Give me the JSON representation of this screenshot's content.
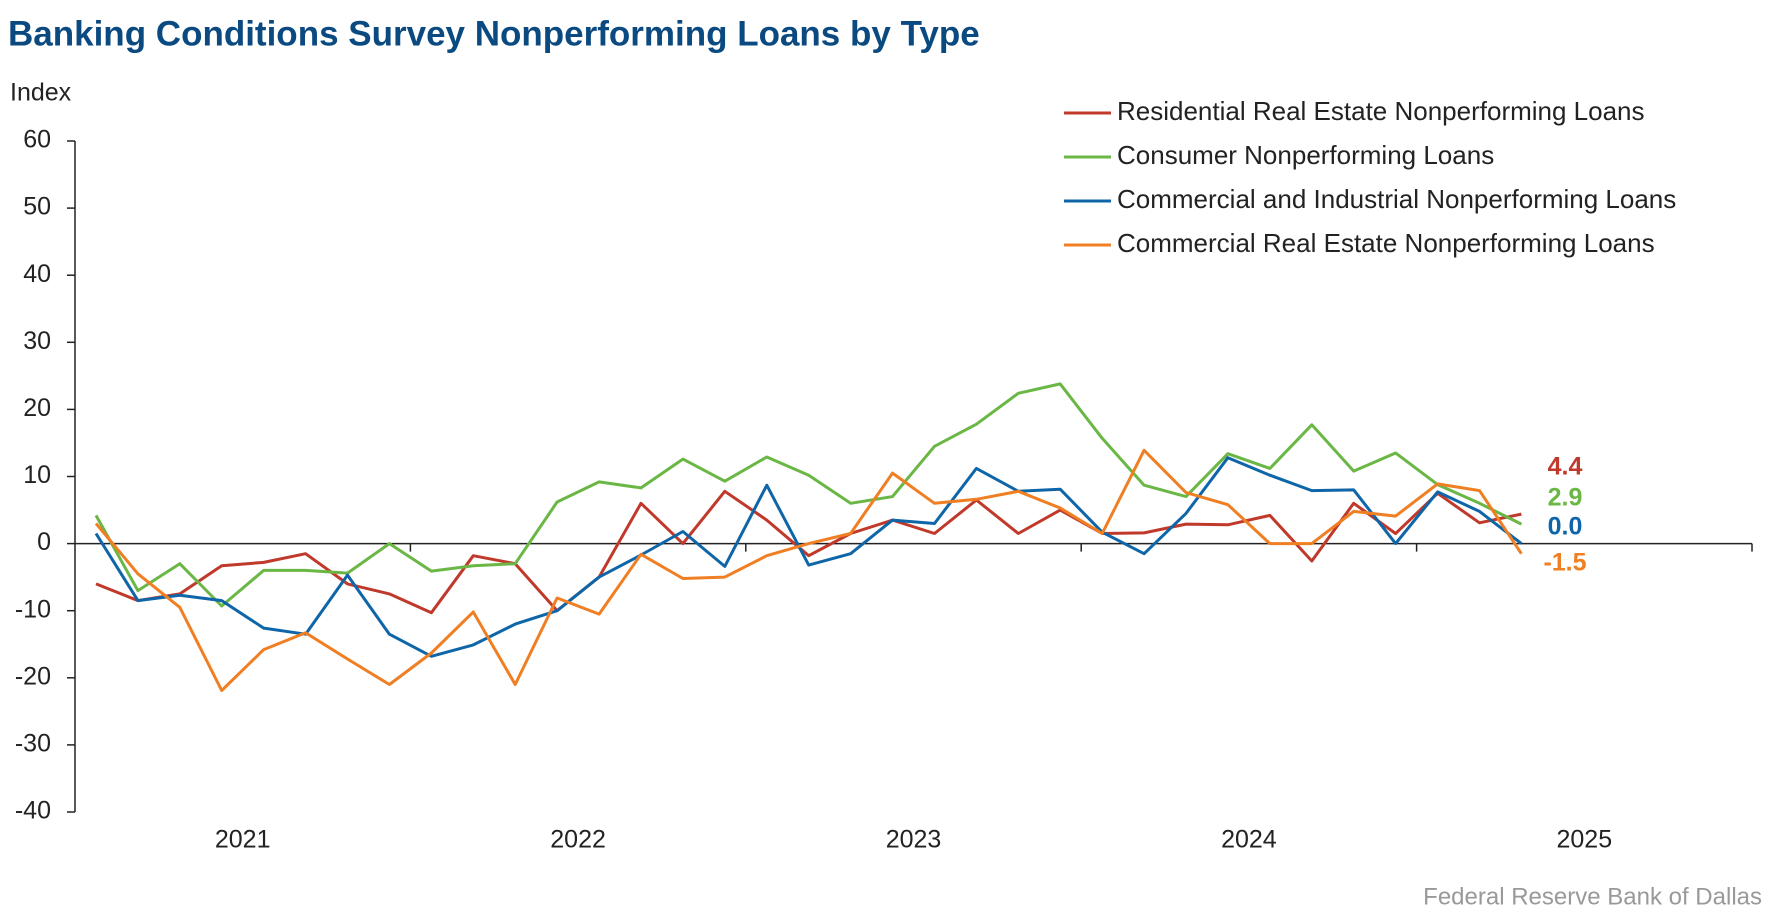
{
  "chart_data": {
    "type": "line",
    "title": "Banking Conditions Survey Nonperforming Loans by Type",
    "y_label": "Index",
    "source": "Federal Reserve Bank of Dallas",
    "x_labels": [
      "2021",
      "2022",
      "2023",
      "2024",
      "2025"
    ],
    "categories": [
      null,
      null,
      null,
      null,
      null,
      null,
      null,
      null,
      null,
      null,
      null,
      null,
      null,
      null,
      null,
      null,
      null,
      null,
      null,
      null,
      null,
      null,
      null,
      null,
      null,
      null,
      null,
      null,
      null,
      null,
      null,
      null,
      null,
      null,
      null
    ],
    "ylim": [
      -40,
      60
    ],
    "yticks": [
      -40,
      -30,
      -20,
      -10,
      0,
      10,
      20,
      30,
      40,
      50,
      60
    ],
    "series": [
      {
        "name": "Residential Real Estate Nonperforming Loans",
        "color": "#c0392b",
        "end_label": "4.4",
        "values": [
          -6,
          -8.5,
          -7.5,
          -3.3,
          -2.8,
          -1.5,
          -6,
          -7.5,
          -10.3,
          -1.8,
          -3,
          -10,
          -5,
          6,
          0,
          7.8,
          3.5,
          -1.8,
          1.5,
          3.5,
          1.5,
          6.5,
          1.5,
          5,
          1.5,
          1.6,
          2.9,
          2.8,
          4.2,
          -2.6,
          6,
          1.5,
          7.5,
          3.1,
          4.4
        ]
      },
      {
        "name": "Consumer Nonperforming Loans",
        "color": "#6ab745",
        "end_label": "2.9",
        "values": [
          4.2,
          -7,
          -3,
          -9.3,
          -4,
          -4,
          -4.4,
          0,
          -4.1,
          -3.3,
          -3,
          6.2,
          9.2,
          8.3,
          12.6,
          9.3,
          12.9,
          10.2,
          6,
          7,
          14.5,
          17.8,
          22.4,
          23.8,
          15.7,
          8.7,
          7,
          13.4,
          11.2,
          17.7,
          10.8,
          13.5,
          8.8,
          6,
          2.9
        ]
      },
      {
        "name": "Commercial and Industrial Nonperforming Loans",
        "color": "#0e66a8",
        "end_label": "0.0",
        "values": [
          1.5,
          -8.5,
          -7.7,
          -8.5,
          -12.6,
          -13.5,
          -4.7,
          -13.5,
          -16.8,
          -15.1,
          -12,
          -10,
          -5,
          -1.7,
          1.8,
          -3.4,
          8.7,
          -3.2,
          -1.5,
          3.5,
          3,
          11.2,
          7.8,
          8.1,
          1.7,
          -1.5,
          4.5,
          12.8,
          10.2,
          7.9,
          8,
          0,
          7.7,
          4.8,
          0
        ]
      },
      {
        "name": "Commercial Real Estate Nonperforming Loans",
        "color": "#f07f23",
        "end_label": "-1.5",
        "values": [
          3,
          -4.5,
          -9.5,
          -21.9,
          -15.8,
          -13.3,
          -17.2,
          -21,
          -16.3,
          -10.2,
          -21,
          -8.1,
          -10.5,
          -1.6,
          -5.2,
          -5,
          -1.8,
          0,
          1.5,
          10.5,
          6,
          6.6,
          7.8,
          5.3,
          1.5,
          13.9,
          7.6,
          5.8,
          0,
          0,
          4.8,
          4.1,
          8.9,
          7.9,
          -1.5
        ]
      }
    ]
  }
}
